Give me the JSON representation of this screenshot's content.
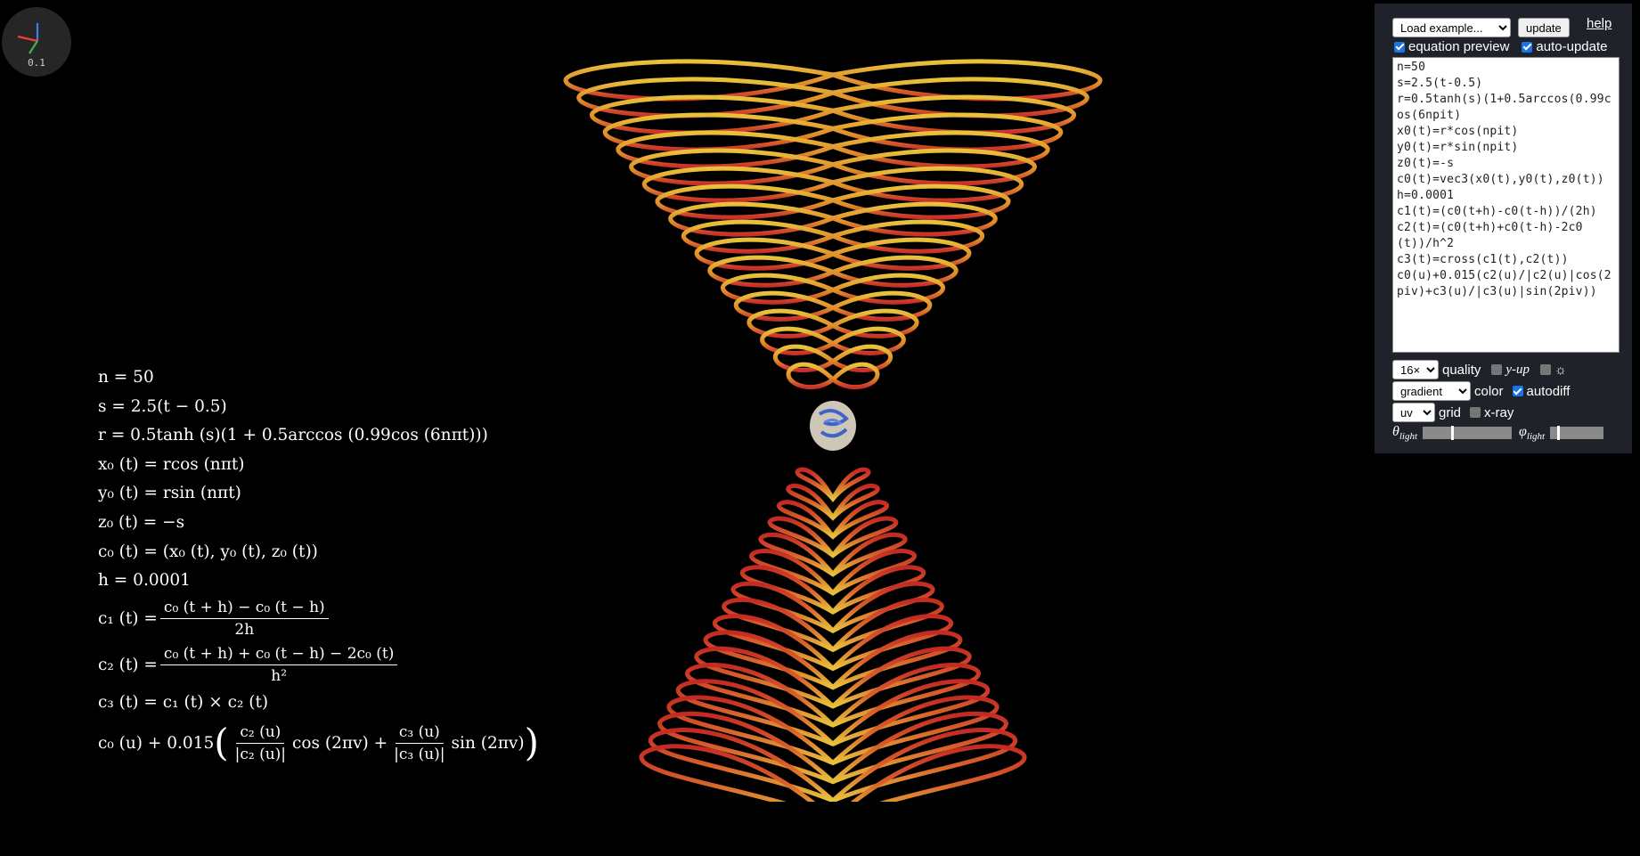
{
  "gizmo": {
    "scale_label": "0.1",
    "axis_colors": {
      "x": "#e8433a",
      "y": "#4caf50",
      "z": "#3f7fe0"
    }
  },
  "equations": {
    "eq_n": "n = 50",
    "eq_s": "s = 2.5(t − 0.5)",
    "eq_r": "r = 0.5tanh (s)(1 + 0.5arccos (0.99cos (6nπt)))",
    "eq_x0": "x₀ (t) = rcos (nπt)",
    "eq_y0": "y₀ (t) = rsin (nπt)",
    "eq_z0": "z₀ (t) = −s",
    "eq_c0": "c₀ (t) = (x₀ (t), y₀ (t), z₀ (t))",
    "eq_h": "h = 0.0001",
    "c1_lhs": "c₁ (t) =",
    "c1_num": "c₀ (t + h) − c₀ (t − h)",
    "c1_den": "2h",
    "c2_lhs": "c₂ (t) =",
    "c2_num": "c₀ (t + h) + c₀ (t − h) − 2c₀ (t)",
    "c2_den": "h²",
    "eq_c3": "c₃ (t) = c₁ (t) × c₂ (t)",
    "last_lhs": "c₀ (u) + 0.015",
    "last_open": "(",
    "last_f1_num": "c₂ (u)",
    "last_f1_den": "|c₂ (u)|",
    "last_mid": "cos (2πv) +",
    "last_f2_num": "c₃ (u)",
    "last_f2_den": "|c₃ (u)|",
    "last_tail": "sin (2πv)",
    "last_close": ")"
  },
  "panel": {
    "load_example": "Load example...",
    "update_button": "update",
    "help_link": "help",
    "equation_preview_label": "equation preview",
    "equation_preview_checked": true,
    "auto_update_label": "auto-update",
    "auto_update_checked": true,
    "code": "n=50\ns=2.5(t-0.5)\nr=0.5tanh(s)(1+0.5arccos(0.99cos(6npit)\nx0(t)=r*cos(npit)\ny0(t)=r*sin(npit)\nz0(t)=-s\nc0(t)=vec3(x0(t),y0(t),z0(t))\nh=0.0001\nc1(t)=(c0(t+h)-c0(t-h))/(2h)\nc2(t)=(c0(t+h)+c0(t-h)-2c0(t))/h^2\nc3(t)=cross(c1(t),c2(t))\nc0(u)+0.015(c2(u)/|c2(u)|cos(2piv)+c3(u)/|c3(u)|sin(2piv))",
    "quality_value": "16×",
    "quality_label": "quality",
    "yup_label": "y-up",
    "yup_checked": false,
    "light_icon": "sun-icon",
    "color_value": "gradient",
    "color_label": "color",
    "autodiff_label": "autodiff",
    "autodiff_checked": true,
    "grid_value": "uv",
    "grid_label": "grid",
    "xray_label": "x-ray",
    "xray_checked": false,
    "theta_label": "θ",
    "theta_sub": "light",
    "theta_level": 0.32,
    "phi_label": "φ",
    "phi_sub": "light",
    "phi_level": 0.14
  },
  "scene": {
    "palette": [
      "#e8c23a",
      "#e89a2c",
      "#d8502a",
      "#c42a24"
    ]
  }
}
